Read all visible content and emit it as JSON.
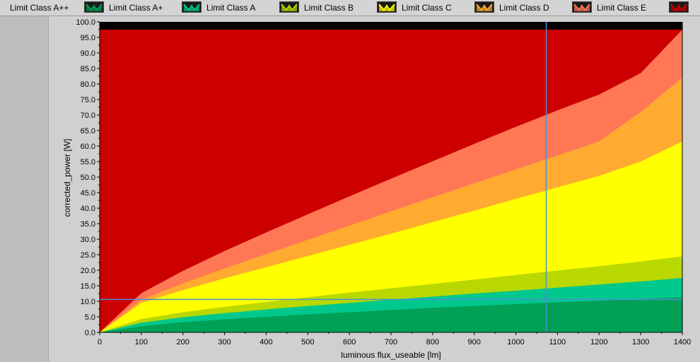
{
  "legend": {
    "items": [
      {
        "label": "Limit Class A++",
        "color": "#000000"
      },
      {
        "label": "Limit Class A+",
        "color": "#00a056"
      },
      {
        "label": "Limit Class A",
        "color": "#00c88c"
      },
      {
        "label": "Limit Class B",
        "color": "#b8d800"
      },
      {
        "label": "Limit Class C",
        "color": "#ffff00"
      },
      {
        "label": "Limit Class D",
        "color": "#ffaa30"
      },
      {
        "label": "Limit Class E",
        "color": "#ff7755"
      }
    ],
    "last_swatch_color": "#cc0000"
  },
  "chart_data": {
    "type": "area",
    "xlabel": "luminous flux_useable [lm]",
    "ylabel": "corrected_power [W]",
    "xlim": [
      0,
      1400
    ],
    "ylim": [
      0,
      100
    ],
    "x_ticks": [
      0,
      100,
      200,
      300,
      400,
      500,
      600,
      700,
      800,
      900,
      1000,
      1100,
      1200,
      1300,
      1400
    ],
    "y_ticks": [
      "0.0",
      "5.0",
      "10.0",
      "15.0",
      "20.0",
      "25.0",
      "30.0",
      "35.0",
      "40.0",
      "45.0",
      "50.0",
      "55.0",
      "60.0",
      "65.0",
      "70.0",
      "75.0",
      "80.0",
      "85.0",
      "90.0",
      "95.0",
      "100.0"
    ],
    "x": [
      0,
      100,
      200,
      300,
      400,
      500,
      600,
      700,
      800,
      900,
      1000,
      1100,
      1200,
      1300,
      1400
    ],
    "series": [
      {
        "name": "Limit Class A++",
        "color": "#000000",
        "values": [
          0.0,
          0,
          0,
          0,
          0,
          0,
          0,
          0,
          0,
          0,
          0,
          0,
          0,
          0,
          0
        ]
      },
      {
        "name": "Limit Class A+",
        "color": "#00a056",
        "values": [
          0.0,
          2.0,
          3.3,
          4.2,
          5.0,
          5.8,
          6.5,
          7.2,
          7.9,
          8.5,
          9.1,
          9.7,
          10.2,
          10.8,
          11.3
        ]
      },
      {
        "name": "Limit Class A",
        "color": "#00c88c",
        "values": [
          0.0,
          3.1,
          4.9,
          6.2,
          7.4,
          8.5,
          9.5,
          10.5,
          11.5,
          12.5,
          13.4,
          14.4,
          15.4,
          16.4,
          17.5
        ]
      },
      {
        "name": "Limit Class B",
        "color": "#b8d800",
        "values": [
          0.0,
          4.3,
          6.5,
          8.2,
          9.8,
          11.3,
          12.8,
          14.2,
          15.6,
          17.0,
          18.5,
          19.9,
          21.3,
          22.8,
          24.5
        ]
      },
      {
        "name": "Limit Class C",
        "color": "#ffff00",
        "values": [
          0.0,
          9.5,
          13.6,
          17.4,
          21.0,
          24.6,
          28.2,
          31.8,
          35.5,
          39.2,
          43.0,
          46.7,
          50.4,
          55.0,
          61.5
        ]
      },
      {
        "name": "Limit Class D",
        "color": "#ffaa30",
        "values": [
          0.0,
          10.5,
          15.8,
          20.6,
          25.2,
          29.8,
          34.4,
          39.0,
          43.5,
          48.0,
          52.5,
          57.0,
          61.5,
          71.0,
          82.0
        ]
      },
      {
        "name": "Limit Class E",
        "color": "#ff7755",
        "values": [
          0.0,
          12.6,
          19.8,
          26.2,
          32.2,
          38.0,
          43.8,
          49.5,
          55.1,
          60.7,
          66.2,
          71.5,
          76.6,
          83.5,
          97.5
        ]
      },
      {
        "name": "",
        "color": "#cc0000",
        "values": [
          97.5,
          97.5,
          97.5,
          97.5,
          97.5,
          97.5,
          97.5,
          97.5,
          97.5,
          97.5,
          97.5,
          97.5,
          97.5,
          97.5,
          97.5
        ]
      }
    ],
    "cursor": {
      "x": 1073,
      "y": 10.6,
      "color": "#4a90d9"
    },
    "grid": false,
    "legend_position": "top"
  }
}
